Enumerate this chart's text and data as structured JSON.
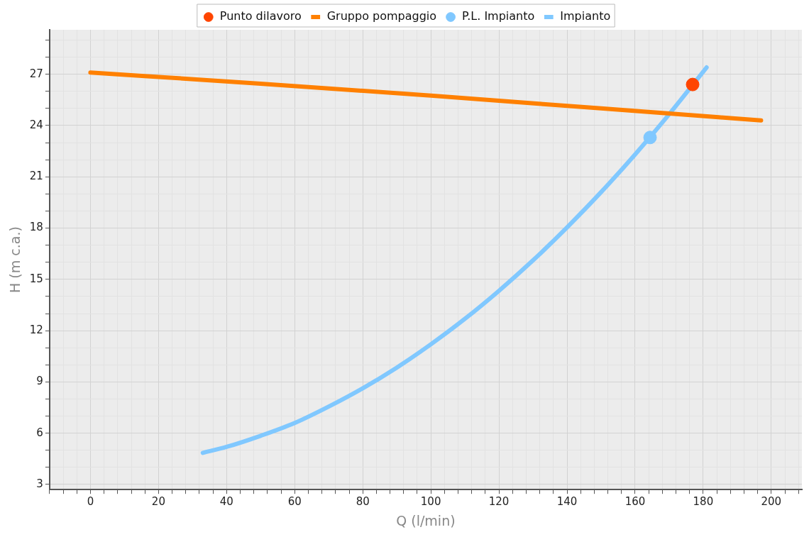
{
  "chart_data": {
    "type": "line",
    "xlabel": "Q (l/min)",
    "ylabel": "H (m c.a.)",
    "legend": "top",
    "grid": true,
    "xlim": [
      -12,
      209
    ],
    "ylim": [
      2.7,
      29.6
    ],
    "xticks": [
      {
        "value": -12,
        "label": null
      },
      {
        "value": -8,
        "label": null
      },
      {
        "value": -4,
        "label": null
      },
      0,
      {
        "value": 4,
        "label": null
      },
      {
        "value": 8,
        "label": null
      },
      {
        "value": 12,
        "label": null
      },
      {
        "value": 16,
        "label": null
      },
      20,
      {
        "value": 24,
        "label": null
      },
      {
        "value": 28,
        "label": null
      },
      {
        "value": 32,
        "label": null
      },
      {
        "value": 36,
        "label": null
      },
      40,
      {
        "value": 44,
        "label": null
      },
      {
        "value": 48,
        "label": null
      },
      {
        "value": 52,
        "label": null
      },
      {
        "value": 56,
        "label": null
      },
      60,
      {
        "value": 64,
        "label": null
      },
      {
        "value": 68,
        "label": null
      },
      {
        "value": 72,
        "label": null
      },
      {
        "value": 76,
        "label": null
      },
      80,
      {
        "value": 84,
        "label": null
      },
      {
        "value": 88,
        "label": null
      },
      {
        "value": 92,
        "label": null
      },
      {
        "value": 96,
        "label": null
      },
      100,
      {
        "value": 104,
        "label": null
      },
      {
        "value": 108,
        "label": null
      },
      {
        "value": 112,
        "label": null
      },
      {
        "value": 116,
        "label": null
      },
      120,
      {
        "value": 124,
        "label": null
      },
      {
        "value": 128,
        "label": null
      },
      {
        "value": 132,
        "label": null
      },
      {
        "value": 136,
        "label": null
      },
      140,
      {
        "value": 144,
        "label": null
      },
      {
        "value": 148,
        "label": null
      },
      {
        "value": 152,
        "label": null
      },
      {
        "value": 156,
        "label": null
      },
      160,
      {
        "value": 164,
        "label": null
      },
      {
        "value": 168,
        "label": null
      },
      {
        "value": 172,
        "label": null
      },
      {
        "value": 176,
        "label": null
      },
      180,
      {
        "value": 184,
        "label": null
      },
      {
        "value": 188,
        "label": null
      },
      {
        "value": 192,
        "label": null
      },
      {
        "value": 196,
        "label": null
      },
      200,
      {
        "value": 204,
        "label": null
      },
      {
        "value": 208,
        "label": null
      }
    ],
    "yticks": [
      3,
      {
        "value": 4,
        "label": null
      },
      {
        "value": 5,
        "label": null
      },
      6,
      {
        "value": 7,
        "label": null
      },
      {
        "value": 8,
        "label": null
      },
      9,
      {
        "value": 10,
        "label": null
      },
      {
        "value": 11,
        "label": null
      },
      12,
      {
        "value": 13,
        "label": null
      },
      {
        "value": 14,
        "label": null
      },
      15,
      {
        "value": 16,
        "label": null
      },
      {
        "value": 17,
        "label": null
      },
      18,
      {
        "value": 19,
        "label": null
      },
      {
        "value": 20,
        "label": null
      },
      21,
      {
        "value": 22,
        "label": null
      },
      {
        "value": 23,
        "label": null
      },
      24,
      {
        "value": 25,
        "label": null
      },
      {
        "value": 26,
        "label": null
      },
      27,
      {
        "value": 28,
        "label": null
      },
      {
        "value": 29,
        "label": null
      }
    ],
    "series": [
      {
        "name": "Punto dilavoro",
        "type": "scatter",
        "marker": "circle",
        "color": "#ff4500",
        "x": [
          176.9
        ],
        "values": [
          26.4
        ]
      },
      {
        "name": "Gruppo pompaggio",
        "marker": "none",
        "color": "#ff8000",
        "x": [
          0,
          50,
          100,
          150,
          197
        ],
        "values": [
          27.1,
          26.45,
          25.75,
          25.0,
          24.3
        ]
      },
      {
        "name": "P.L. Impianto",
        "type": "scatter",
        "marker": "circle",
        "color": "#80c8ff",
        "x": [
          164.4
        ],
        "values": [
          23.3
        ]
      },
      {
        "name": "Impianto",
        "marker": "none",
        "color": "#80c8ff",
        "x": [
          33,
          40,
          50,
          60,
          70,
          80,
          90,
          100,
          110,
          120,
          130,
          140,
          150,
          160,
          170,
          181
        ],
        "values": [
          4.85,
          5.2,
          5.85,
          6.6,
          7.56,
          8.63,
          9.84,
          11.2,
          12.69,
          14.33,
          16.11,
          18.04,
          20.1,
          22.31,
          24.66,
          27.4
        ]
      }
    ]
  }
}
